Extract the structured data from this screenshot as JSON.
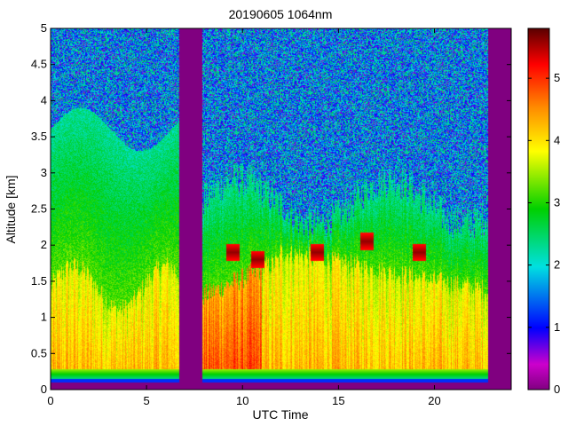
{
  "chart_data": {
    "type": "heatmap",
    "title": "20190605 1064nm",
    "xlabel": "UTC Time",
    "ylabel": "Altitude [km]",
    "xlim": [
      0,
      24
    ],
    "ylim": [
      0,
      5
    ],
    "x_ticks": [
      0,
      5,
      10,
      15,
      20
    ],
    "x_tick_labels": [
      "0",
      "5",
      "10",
      "15",
      "20"
    ],
    "y_ticks": [
      0,
      0.5,
      1,
      1.5,
      2,
      2.5,
      3,
      3.5,
      4,
      4.5,
      5
    ],
    "y_tick_labels": [
      "0",
      "0.5",
      "1",
      "1.5",
      "2",
      "2.5",
      "3",
      "3.5",
      "4",
      "4.5",
      "5"
    ],
    "colorbar": {
      "range": [
        0,
        5.8
      ],
      "ticks": [
        0,
        1,
        2,
        3,
        4,
        5
      ],
      "tick_labels": [
        "0",
        "1",
        "2",
        "3",
        "4",
        "5"
      ],
      "colormap": "rainbow (magenta-blue-cyan-green-yellow-orange-red-dark red)"
    },
    "no_data_intervals_hours": [
      [
        6.7,
        7.9
      ],
      [
        22.8,
        24
      ]
    ],
    "cloud_events": [
      {
        "time_hours": 9.5,
        "altitude_km": 1.9
      },
      {
        "time_hours": 10.8,
        "altitude_km": 1.8
      },
      {
        "time_hours": 13.9,
        "altitude_km": 1.9
      },
      {
        "time_hours": 16.5,
        "altitude_km": 2.05
      },
      {
        "time_hours": 19.2,
        "altitude_km": 1.9
      }
    ],
    "missing_color": "#800080"
  }
}
